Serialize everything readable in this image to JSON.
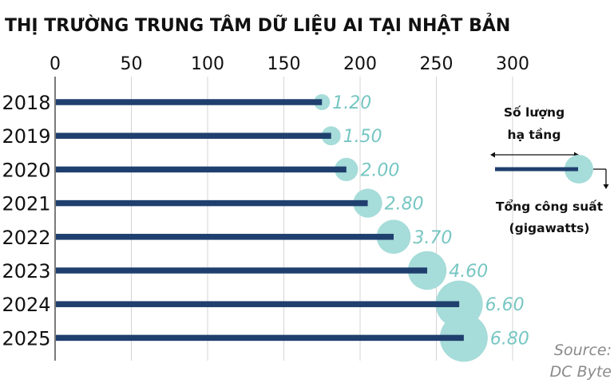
{
  "colors": {
    "bar": "#1f3f6e",
    "bubble": "#a6dcd9",
    "value_text": "#76c6c2",
    "gridline": "#d5d5d5",
    "axis": "#333333",
    "text": "#111111",
    "source": "#8a8a8a"
  },
  "chart_data": {
    "type": "bar",
    "orientation": "horizontal",
    "title": "THỊ TRƯỜNG TRUNG TÂM DỮ LIỆU AI TẠI NHẬT BẢN",
    "x_ticks": [
      "0",
      "50",
      "100",
      "150",
      "200",
      "250",
      "300"
    ],
    "xlim": [
      0,
      300
    ],
    "grid": true,
    "categories": [
      "2018",
      "2019",
      "2020",
      "2021",
      "2022",
      "2023",
      "2024",
      "2025"
    ],
    "series": [
      {
        "name": "Số lượng hạ tầng",
        "values": [
          175,
          181,
          191,
          205,
          222,
          244,
          265,
          268
        ]
      },
      {
        "name": "Tổng công suất (gigawatts)",
        "values": [
          1.2,
          1.5,
          2.0,
          2.8,
          3.7,
          4.6,
          6.6,
          6.8
        ],
        "labels": [
          "1.20",
          "1.50",
          "2.00",
          "2.80",
          "3.70",
          "4.60",
          "6.60",
          "6.80"
        ]
      }
    ],
    "legend": {
      "count_label_line1": "Số lượng",
      "count_label_line2": "hạ tầng",
      "capacity_label_line1": "Tổng công suất",
      "capacity_label_line2": "(gigawatts)",
      "position": "right"
    },
    "source_line1": "Source:",
    "source_line2": "DC Byte"
  }
}
